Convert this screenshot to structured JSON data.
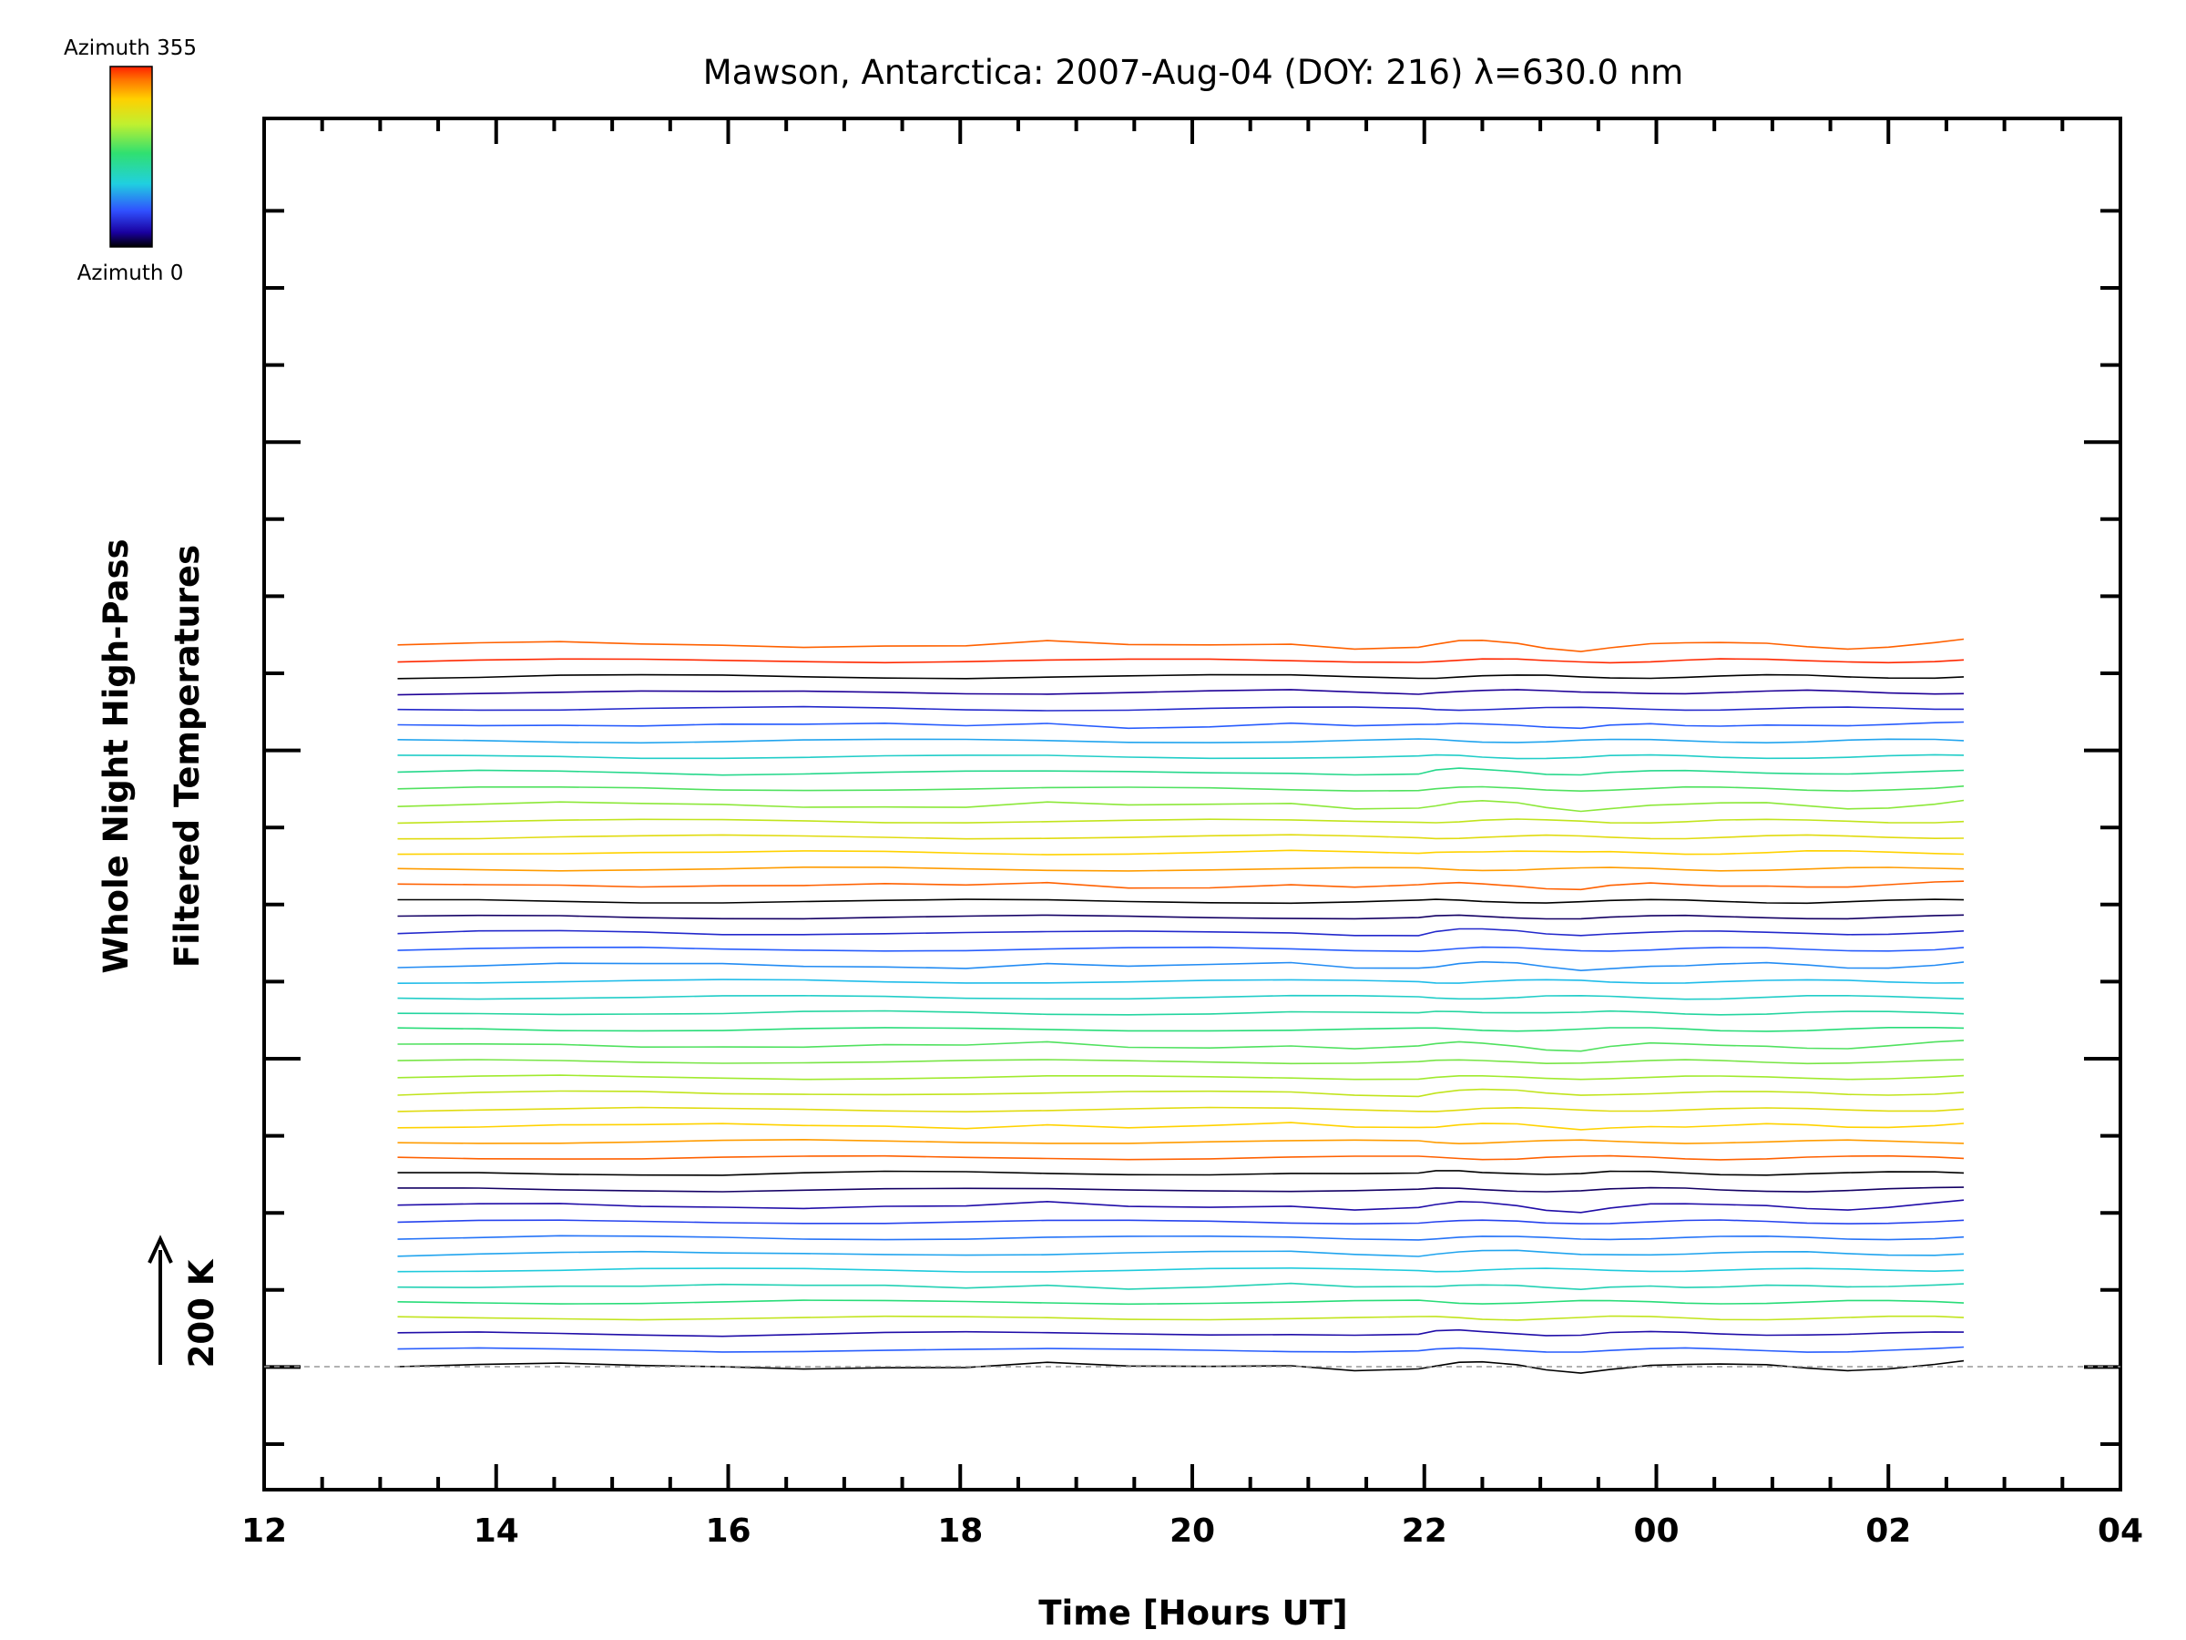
{
  "chart_data": {
    "type": "line",
    "title": "Mawson, Antarctica: 2007-Aug-04 (DOY: 216) λ=630.0 nm",
    "xlabel": "Time [Hours UT]",
    "ylabel_line1": "Whole Night High-Pass",
    "ylabel_line2": "Filtered Temperatures",
    "scale_label": "200 K",
    "colorbar": {
      "top_label": "Azimuth  355",
      "bottom_label": "Azimuth  0"
    },
    "xlim": [
      12,
      28
    ],
    "x_ticks": [
      "12",
      "14",
      "16",
      "18",
      "20",
      "22",
      "00",
      "02",
      "04"
    ],
    "grid": false,
    "legend": "colorbar top-left",
    "x": [
      13.15,
      13.85,
      14.55,
      15.25,
      15.95,
      16.65,
      17.35,
      18.05,
      18.75,
      19.45,
      20.15,
      20.85,
      21.4,
      21.95,
      22.1,
      22.3,
      22.5,
      22.8,
      23.05,
      23.35,
      23.6,
      23.95,
      24.25,
      24.55,
      24.95,
      25.3,
      25.65,
      26.0,
      26.4,
      26.65
    ],
    "series_count": 46,
    "series_note_hidden": true,
    "series": [
      {
        "azimuth": 0,
        "values": [
          0.0,
          0.5,
          1.2,
          0.3,
          0.5,
          -0.4,
          0.2,
          -0.6,
          2.0,
          -0.8,
          -0.3,
          1.2,
          -1.5,
          -0.6,
          0.4,
          2.0,
          2.1,
          0.8,
          -1.6,
          -3.2,
          -1.0,
          0.8,
          0.5,
          0.6,
          0.9,
          -0.4,
          -1.5,
          -0.6,
          1.5,
          3.0
        ]
      },
      {
        "azimuth": 50,
        "values": [
          0.3,
          0.6,
          0.4,
          0.6,
          0.2,
          0.5,
          0.4,
          0.1,
          0.2,
          0.3,
          0.6,
          0.4,
          0.2,
          0.1,
          0.3,
          0.5,
          0.6,
          0.4,
          0.2,
          0.1,
          0.3,
          0.5,
          0.6,
          0.4,
          0.3,
          0.1,
          0.2,
          0.4,
          0.6,
          1.2
        ]
      },
      {
        "azimuth": 20,
        "values": [
          0.0,
          0.9,
          0.9,
          0.7,
          0.0,
          0.6,
          0.9,
          0.7,
          0.4,
          0.6,
          0.8,
          1.2,
          0.0,
          -0.4,
          1.4,
          2.3,
          2.1,
          1.6,
          0.5,
          0.0,
          0.8,
          0.9,
          0.7,
          0.6,
          0.6,
          0.9,
          0.6,
          0.5,
          0.6,
          0.8
        ]
      },
      {
        "azimuth": 230,
        "values": [
          0.2,
          0.3,
          0.7,
          0.4,
          0.5,
          0.3,
          0.4,
          0.2,
          0.5,
          0.3,
          0.4,
          0.6,
          0.3,
          0.2,
          0.4,
          0.5,
          0.3,
          0.2,
          0.4,
          0.3,
          0.5,
          0.4,
          0.3,
          0.2,
          0.4,
          0.5,
          0.3,
          0.4,
          0.5,
          0.6
        ]
      },
      {
        "azimuth": 150,
        "values": [
          0.1,
          0.4,
          0.3,
          0.2,
          0.3,
          0.5,
          0.2,
          0.3,
          0.4,
          0.2,
          0.3,
          0.1,
          0.2,
          0.4,
          0.3,
          0.2,
          0.3,
          0.4,
          0.2,
          0.3,
          0.1,
          0.2,
          0.3,
          0.4,
          0.2,
          0.1,
          0.3,
          0.2,
          0.3,
          0.4
        ]
      }
    ]
  }
}
